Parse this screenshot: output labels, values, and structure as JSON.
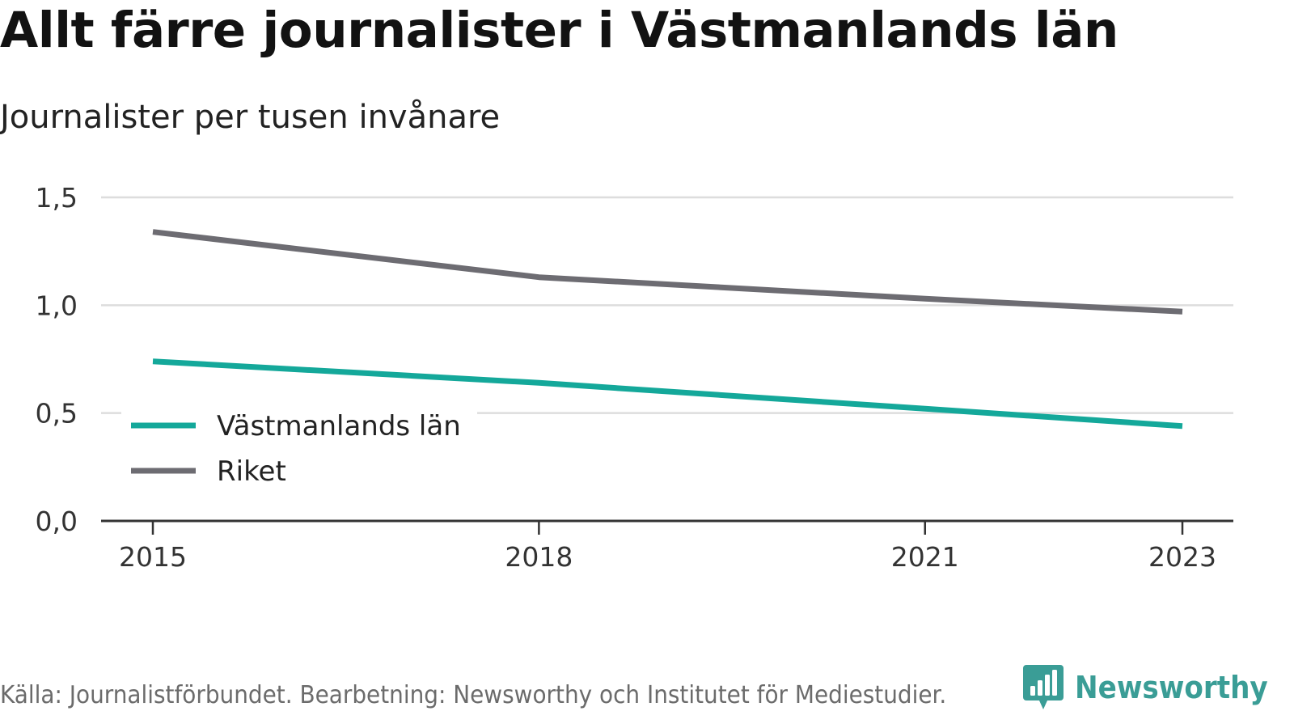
{
  "title": "Allt färre journalister i Västmanlands län",
  "subtitle": "Journalister per tusen invånare",
  "footer": {
    "source": "Källa: Journalistförbundet. Bearbetning: Newsworthy och Institutet för Mediestudier."
  },
  "brand": {
    "name": "Newsworthy",
    "icon": "newsworthy-bar-chart-logo-icon",
    "color": "#3a9d96"
  },
  "chart_data": {
    "type": "line",
    "x": [
      2015,
      2018,
      2021,
      2023
    ],
    "x_tick_labels": [
      "2015",
      "2018",
      "2021",
      "2023"
    ],
    "ylim": [
      0,
      1.5
    ],
    "y_ticks": [
      0,
      0.5,
      1.0,
      1.5
    ],
    "y_tick_labels": [
      "0,0",
      "0,5",
      "1,0",
      "1,5"
    ],
    "grid": true,
    "legend_position": "lower-left",
    "series": [
      {
        "name": "Västmanlands län",
        "color": "#14a89a",
        "values": [
          0.74,
          0.64,
          0.52,
          0.44
        ]
      },
      {
        "name": "Riket",
        "color": "#6d6c72",
        "values": [
          1.34,
          1.13,
          1.03,
          0.97
        ]
      }
    ]
  }
}
